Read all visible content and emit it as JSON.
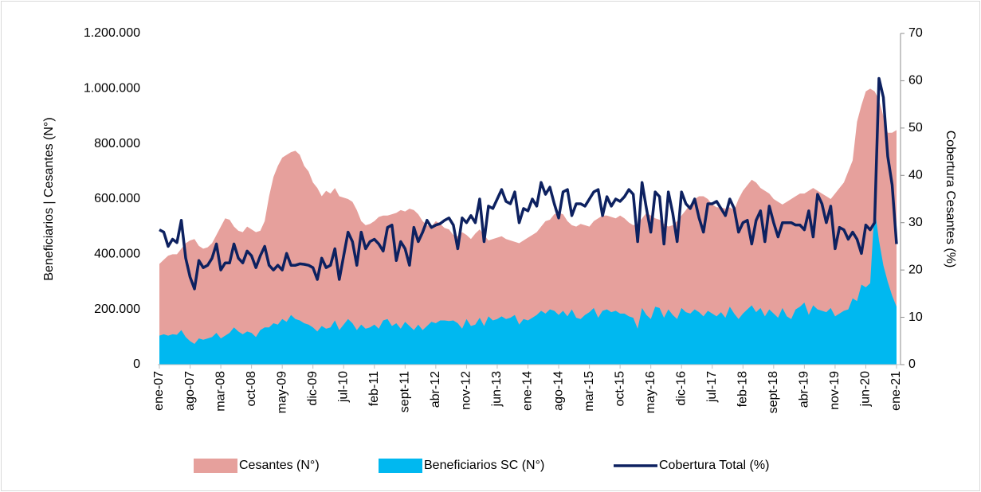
{
  "chart_data": {
    "type": "area-line",
    "y_label": "Beneficiarios  |  Cesantes (N°)",
    "y2_label": "Cobertura Cesantes (%)",
    "categories": [
      "ene-07",
      null,
      null,
      null,
      null,
      null,
      null,
      "ago-07",
      null,
      null,
      null,
      null,
      null,
      null,
      "mar-08",
      null,
      null,
      null,
      null,
      null,
      null,
      "oct-08",
      null,
      null,
      null,
      null,
      null,
      null,
      "may-09",
      null,
      null,
      null,
      null,
      null,
      null,
      "dic-09",
      null,
      null,
      null,
      null,
      null,
      null,
      "jul-10",
      null,
      null,
      null,
      null,
      null,
      null,
      "feb-11",
      null,
      null,
      null,
      null,
      null,
      null,
      "sept-11",
      null,
      null,
      null,
      null,
      null,
      null,
      "abr-12",
      null,
      null,
      null,
      null,
      null,
      null,
      "nov-12",
      null,
      null,
      null,
      null,
      null,
      null,
      "jun-13",
      null,
      null,
      null,
      null,
      null,
      null,
      "ene-14",
      null,
      null,
      null,
      null,
      null,
      null,
      "ago-14",
      null,
      null,
      null,
      null,
      null,
      null,
      "mar-15",
      null,
      null,
      null,
      null,
      null,
      null,
      "oct-15",
      null,
      null,
      null,
      null,
      null,
      null,
      "may-16",
      null,
      null,
      null,
      null,
      null,
      null,
      "dic-16",
      null,
      null,
      null,
      null,
      null,
      null,
      "jul-17",
      null,
      null,
      null,
      null,
      null,
      null,
      "feb-18",
      null,
      null,
      null,
      null,
      null,
      null,
      "sept-18",
      null,
      null,
      null,
      null,
      null,
      null,
      "abr-19",
      null,
      null,
      null,
      null,
      null,
      null,
      "nov-19",
      null,
      null,
      null,
      null,
      null,
      null,
      "jun-20",
      null,
      null,
      null,
      null,
      null,
      null,
      "ene-21"
    ],
    "series": [
      {
        "name": "Cesantes (N°)",
        "kind": "area",
        "color": "#e6a09c",
        "values": [
          365000,
          380000,
          395000,
          400000,
          400000,
          420000,
          440000,
          450000,
          455000,
          430000,
          420000,
          425000,
          440000,
          470000,
          500000,
          530000,
          525000,
          500000,
          485000,
          480000,
          500000,
          490000,
          480000,
          485000,
          520000,
          610000,
          680000,
          720000,
          750000,
          760000,
          770000,
          775000,
          760000,
          720000,
          700000,
          660000,
          640000,
          610000,
          630000,
          620000,
          640000,
          610000,
          605000,
          600000,
          590000,
          560000,
          520000,
          505000,
          510000,
          520000,
          535000,
          540000,
          540000,
          545000,
          550000,
          560000,
          555000,
          565000,
          560000,
          545000,
          520000,
          505000,
          500000,
          520000,
          510000,
          495000,
          490000,
          470000,
          465000,
          480000,
          470000,
          455000,
          475000,
          490000,
          470000,
          450000,
          455000,
          460000,
          465000,
          455000,
          450000,
          445000,
          440000,
          450000,
          460000,
          470000,
          480000,
          500000,
          520000,
          525000,
          545000,
          550000,
          545000,
          520000,
          505000,
          500000,
          510000,
          505000,
          500000,
          520000,
          530000,
          540000,
          540000,
          535000,
          530000,
          540000,
          530000,
          515000,
          505000,
          510000,
          530000,
          550000,
          540000,
          530000,
          525000,
          510000,
          500000,
          505000,
          520000,
          540000,
          560000,
          580000,
          600000,
          610000,
          610000,
          600000,
          580000,
          570000,
          570000,
          565000,
          570000,
          560000,
          600000,
          630000,
          650000,
          670000,
          660000,
          640000,
          630000,
          620000,
          600000,
          590000,
          580000,
          590000,
          600000,
          610000,
          620000,
          620000,
          630000,
          640000,
          630000,
          620000,
          610000,
          600000,
          620000,
          640000,
          660000,
          700000,
          740000,
          880000,
          940000,
          990000,
          1000000,
          990000,
          960000,
          900000,
          840000,
          840000,
          850000
        ]
      },
      {
        "name": "Beneficiarios SC (N°)",
        "kind": "area",
        "color": "#00b8f0",
        "values": [
          105000,
          110000,
          105000,
          110000,
          108000,
          125000,
          100000,
          85000,
          75000,
          95000,
          90000,
          95000,
          100000,
          115000,
          95000,
          105000,
          115000,
          135000,
          120000,
          110000,
          120000,
          115000,
          100000,
          125000,
          135000,
          135000,
          150000,
          145000,
          165000,
          155000,
          180000,
          165000,
          160000,
          150000,
          145000,
          135000,
          120000,
          140000,
          130000,
          135000,
          160000,
          125000,
          145000,
          165000,
          150000,
          125000,
          145000,
          130000,
          135000,
          145000,
          130000,
          160000,
          165000,
          140000,
          150000,
          130000,
          155000,
          140000,
          125000,
          145000,
          125000,
          140000,
          155000,
          150000,
          160000,
          160000,
          158000,
          160000,
          150000,
          130000,
          165000,
          140000,
          145000,
          170000,
          140000,
          175000,
          160000,
          165000,
          175000,
          165000,
          170000,
          180000,
          145000,
          165000,
          160000,
          170000,
          180000,
          195000,
          185000,
          200000,
          195000,
          180000,
          195000,
          175000,
          200000,
          170000,
          165000,
          180000,
          190000,
          205000,
          170000,
          195000,
          200000,
          190000,
          195000,
          185000,
          185000,
          175000,
          170000,
          130000,
          205000,
          180000,
          165000,
          210000,
          205000,
          170000,
          200000,
          180000,
          165000,
          205000,
          190000,
          185000,
          200000,
          190000,
          175000,
          195000,
          185000,
          175000,
          190000,
          170000,
          210000,
          185000,
          165000,
          185000,
          200000,
          215000,
          190000,
          205000,
          175000,
          200000,
          185000,
          170000,
          205000,
          175000,
          165000,
          200000,
          210000,
          225000,
          180000,
          215000,
          200000,
          195000,
          190000,
          205000,
          175000,
          185000,
          195000,
          200000,
          240000,
          230000,
          290000,
          280000,
          295000,
          570000,
          450000,
          360000,
          300000,
          250000,
          210000
        ]
      },
      {
        "name": "Cobertura Total (%)",
        "kind": "line",
        "axis": "y2",
        "color": "#0d2160",
        "values": [
          28.5,
          28,
          25,
          26.5,
          25.8,
          30.5,
          22.5,
          18.5,
          16,
          22,
          20.5,
          21,
          22.5,
          25.5,
          20,
          21.5,
          21.5,
          25.5,
          22.5,
          21.5,
          24,
          23,
          20.5,
          23,
          25,
          21,
          20,
          21,
          20,
          23.5,
          21,
          21,
          21.3,
          21.2,
          21,
          20.5,
          18,
          22.5,
          20.5,
          21,
          24.5,
          18,
          23,
          28,
          26,
          21,
          28,
          24.5,
          26,
          26.5,
          25.5,
          24,
          29,
          29.5,
          22,
          26,
          24.5,
          21,
          29,
          26,
          28,
          30.5,
          29,
          29.5,
          29.8,
          30.5,
          31,
          29.5,
          24.5,
          31,
          30,
          31.5,
          30,
          35,
          26,
          33.5,
          33,
          35,
          37,
          34.5,
          34,
          36.5,
          30,
          33,
          32.5,
          35,
          33.5,
          38.5,
          36,
          37.5,
          34,
          31,
          36.5,
          37,
          31.5,
          34,
          34,
          33.5,
          35,
          36.5,
          37,
          31.5,
          35.5,
          33.5,
          35,
          34.5,
          35.5,
          37,
          36,
          26,
          38.5,
          33,
          28,
          36.5,
          35.5,
          25.5,
          36.5,
          32,
          26,
          36.5,
          34,
          33,
          35,
          31,
          28,
          34,
          34,
          34.5,
          33,
          31.5,
          35,
          33,
          28,
          30,
          30.5,
          25.5,
          30.5,
          32.5,
          26,
          33.5,
          30,
          27,
          30,
          30,
          30,
          29.5,
          29.5,
          28.5,
          32.5,
          27,
          36,
          34,
          30,
          33.5,
          24.5,
          29,
          28.5,
          26.5,
          28,
          26.5,
          23.5,
          29.5,
          28.5,
          30,
          60.5,
          56.5,
          44,
          38,
          25.5
        ]
      }
    ],
    "ylim": [
      0,
      1200000
    ],
    "yticks": [
      0,
      {
        "value": 200000,
        "label": "200.000"
      },
      {
        "value": 400000,
        "label": "400.000"
      },
      {
        "value": 600000,
        "label": "600.000"
      },
      {
        "value": 800000,
        "label": "800.000"
      },
      {
        "value": 1000000,
        "label": "1.000.000"
      },
      {
        "value": 1200000,
        "label": "1.200.000"
      }
    ],
    "y2lim": [
      0,
      70
    ],
    "y2ticks": [
      0,
      10,
      20,
      30,
      40,
      50,
      60,
      70
    ],
    "legend": "bottom"
  }
}
